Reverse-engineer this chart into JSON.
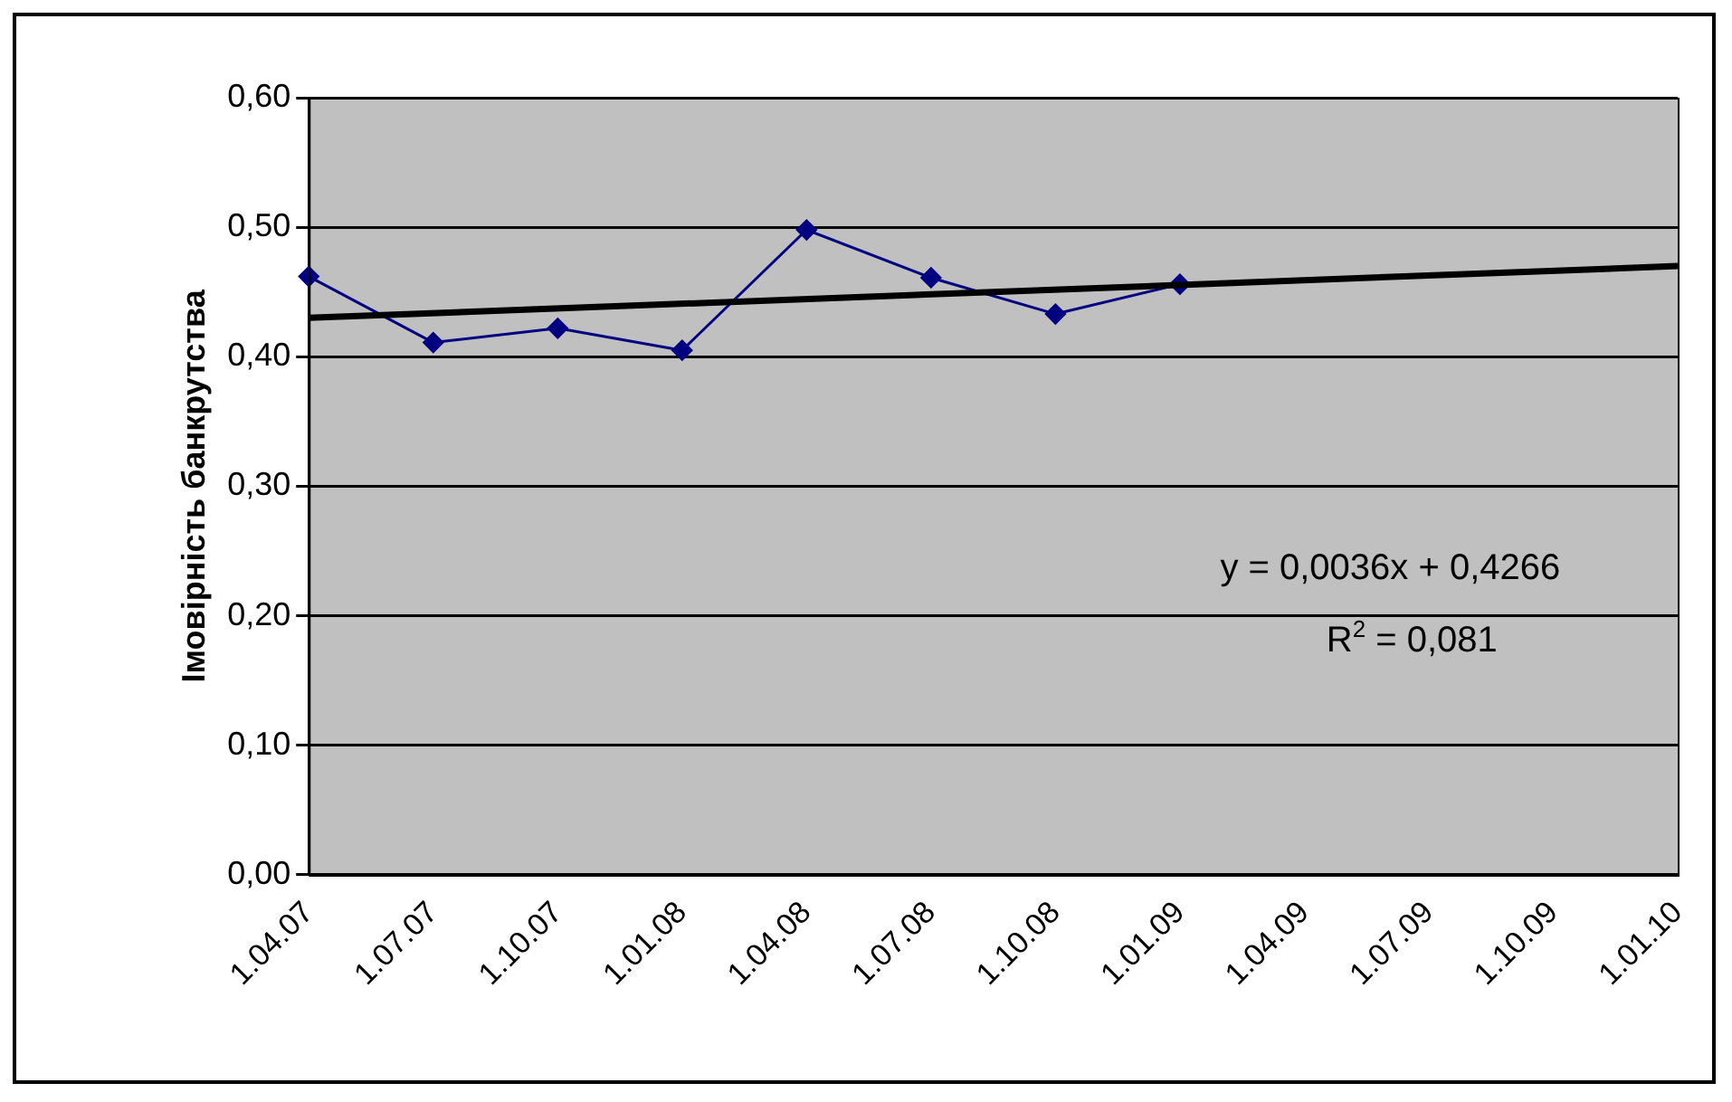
{
  "chart_data": {
    "type": "line",
    "ylabel": "Імовірність банкрутства",
    "categories": [
      "1.04.07",
      "1.07.07",
      "1.10.07",
      "1.01.08",
      "1.04.08",
      "1.07.08",
      "1.10.08",
      "1.01.09",
      "1.04.09",
      "1.07.09",
      "1.10.09",
      "1.01.10"
    ],
    "series": [
      {
        "color": "#000080",
        "marker": "diamond",
        "values": [
          0.462,
          0.411,
          0.422,
          0.405,
          0.498,
          0.461,
          0.433,
          0.456,
          null,
          null,
          null,
          null
        ]
      },
      {
        "color": "#000000",
        "marker": "none",
        "values": [
          0.43,
          null,
          null,
          null,
          null,
          null,
          null,
          null,
          null,
          null,
          null,
          0.47
        ]
      }
    ],
    "ylim": [
      0,
      0.6
    ],
    "yticks": [
      {
        "value": 0,
        "label": "0,00"
      },
      {
        "value": 0.1,
        "label": "0,10"
      },
      {
        "value": 0.2,
        "label": "0,20"
      },
      {
        "value": 0.3,
        "label": "0,30"
      },
      {
        "value": 0.4,
        "label": "0,40"
      },
      {
        "value": 0.5,
        "label": "0,50"
      },
      {
        "value": 0.6,
        "label": "0,60"
      }
    ],
    "grid": "y",
    "legend": false,
    "annotations": [
      "y = 0,0036x + 0,4266",
      "R$^{2}$ = 0,081"
    ]
  }
}
